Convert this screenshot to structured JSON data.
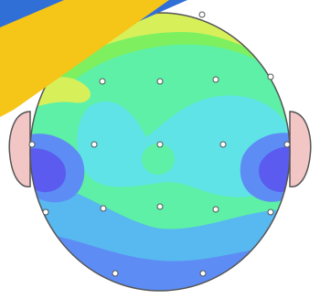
{
  "topomap": {
    "colors": {
      "background": "#ffffff",
      "head_outline": "#555555",
      "ear_fill": "#f2c6c4",
      "banner": "#f5c518",
      "banner_edge": "#2f6fd6",
      "electrode_fill": "#ffffff",
      "electrode_stroke": "#555555"
    },
    "palette": [
      "#5b5bf0",
      "#5d8df4",
      "#58b8f0",
      "#5fe3e6",
      "#5ef0a6",
      "#7ef060",
      "#d7f05a",
      "#f5c84d",
      "#f5844a",
      "#f0545c"
    ],
    "electrode_count": 21
  }
}
